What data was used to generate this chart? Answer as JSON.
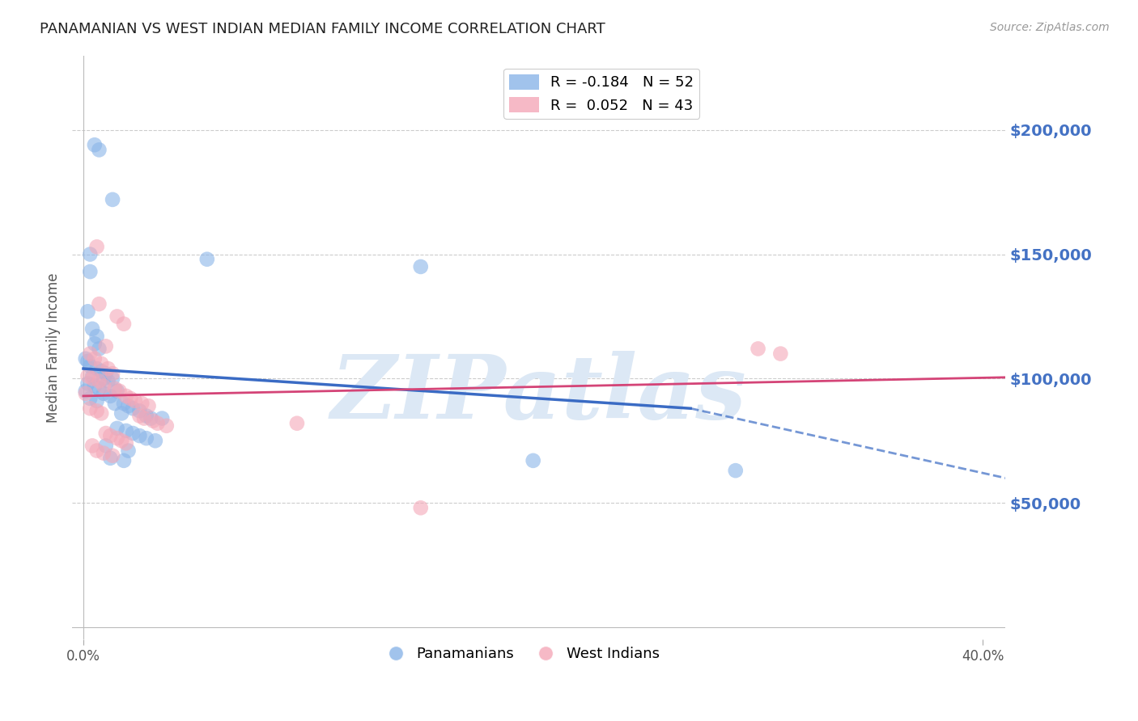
{
  "title": "PANAMANIAN VS WEST INDIAN MEDIAN FAMILY INCOME CORRELATION CHART",
  "source": "Source: ZipAtlas.com",
  "ylabel": "Median Family Income",
  "xlabel_ticks": [
    "0.0%",
    "40.0%"
  ],
  "xlabel_vals": [
    0.0,
    0.4
  ],
  "ytick_vals": [
    50000,
    100000,
    150000,
    200000
  ],
  "ylim": [
    -5000,
    230000
  ],
  "xlim": [
    -0.005,
    0.41
  ],
  "pan_color": "#8ab4e8",
  "wi_color": "#f4a8b8",
  "watermark": "ZIPatlas",
  "watermark_color": "#dce8f5",
  "pan_scatter": [
    [
      0.005,
      194000
    ],
    [
      0.007,
      192000
    ],
    [
      0.013,
      172000
    ],
    [
      0.003,
      150000
    ],
    [
      0.055,
      148000
    ],
    [
      0.003,
      143000
    ],
    [
      0.002,
      127000
    ],
    [
      0.004,
      120000
    ],
    [
      0.006,
      117000
    ],
    [
      0.005,
      114000
    ],
    [
      0.007,
      112000
    ],
    [
      0.001,
      108000
    ],
    [
      0.002,
      107000
    ],
    [
      0.003,
      105000
    ],
    [
      0.006,
      104000
    ],
    [
      0.008,
      103000
    ],
    [
      0.01,
      102000
    ],
    [
      0.004,
      101000
    ],
    [
      0.009,
      100000
    ],
    [
      0.013,
      100000
    ],
    [
      0.011,
      99000
    ],
    [
      0.002,
      98000
    ],
    [
      0.005,
      97000
    ],
    [
      0.007,
      96000
    ],
    [
      0.001,
      95000
    ],
    [
      0.015,
      95000
    ],
    [
      0.009,
      94000
    ],
    [
      0.012,
      93000
    ],
    [
      0.003,
      92000
    ],
    [
      0.006,
      91000
    ],
    [
      0.014,
      90000
    ],
    [
      0.018,
      90000
    ],
    [
      0.02,
      89000
    ],
    [
      0.022,
      88000
    ],
    [
      0.025,
      87000
    ],
    [
      0.017,
      86000
    ],
    [
      0.028,
      85000
    ],
    [
      0.03,
      84000
    ],
    [
      0.035,
      84000
    ],
    [
      0.015,
      80000
    ],
    [
      0.019,
      79000
    ],
    [
      0.022,
      78000
    ],
    [
      0.025,
      77000
    ],
    [
      0.028,
      76000
    ],
    [
      0.032,
      75000
    ],
    [
      0.01,
      73000
    ],
    [
      0.02,
      71000
    ],
    [
      0.012,
      68000
    ],
    [
      0.018,
      67000
    ],
    [
      0.2,
      67000
    ],
    [
      0.29,
      63000
    ],
    [
      0.15,
      145000
    ]
  ],
  "wi_scatter": [
    [
      0.006,
      153000
    ],
    [
      0.007,
      130000
    ],
    [
      0.015,
      125000
    ],
    [
      0.018,
      122000
    ],
    [
      0.01,
      113000
    ],
    [
      0.003,
      110000
    ],
    [
      0.005,
      108000
    ],
    [
      0.008,
      106000
    ],
    [
      0.011,
      104000
    ],
    [
      0.013,
      102000
    ],
    [
      0.002,
      101000
    ],
    [
      0.004,
      100000
    ],
    [
      0.007,
      99000
    ],
    [
      0.009,
      97000
    ],
    [
      0.014,
      96000
    ],
    [
      0.016,
      95000
    ],
    [
      0.001,
      94000
    ],
    [
      0.019,
      93000
    ],
    [
      0.021,
      92000
    ],
    [
      0.023,
      91000
    ],
    [
      0.026,
      90000
    ],
    [
      0.029,
      89000
    ],
    [
      0.003,
      88000
    ],
    [
      0.006,
      87000
    ],
    [
      0.008,
      86000
    ],
    [
      0.025,
      85000
    ],
    [
      0.027,
      84000
    ],
    [
      0.031,
      83000
    ],
    [
      0.033,
      82000
    ],
    [
      0.037,
      81000
    ],
    [
      0.01,
      78000
    ],
    [
      0.012,
      77000
    ],
    [
      0.015,
      76000
    ],
    [
      0.017,
      75000
    ],
    [
      0.019,
      74000
    ],
    [
      0.004,
      73000
    ],
    [
      0.006,
      71000
    ],
    [
      0.009,
      70000
    ],
    [
      0.013,
      69000
    ],
    [
      0.3,
      112000
    ],
    [
      0.31,
      110000
    ],
    [
      0.15,
      48000
    ],
    [
      0.095,
      82000
    ]
  ],
  "pan_line_solid": {
    "x0": 0.0,
    "y0": 104000,
    "x1": 0.27,
    "y1": 88000
  },
  "pan_line_dashed": {
    "x0": 0.27,
    "y0": 88000,
    "x1": 0.41,
    "y1": 60000
  },
  "wi_line": {
    "x0": 0.0,
    "y0": 93000,
    "x1": 0.41,
    "y1": 100500
  },
  "background_color": "#ffffff",
  "grid_color": "#cccccc",
  "title_color": "#222222",
  "axis_label_color": "#555555",
  "right_tick_color": "#4472c4",
  "pan_line_color": "#3a6bc4",
  "wi_line_color": "#d44477"
}
